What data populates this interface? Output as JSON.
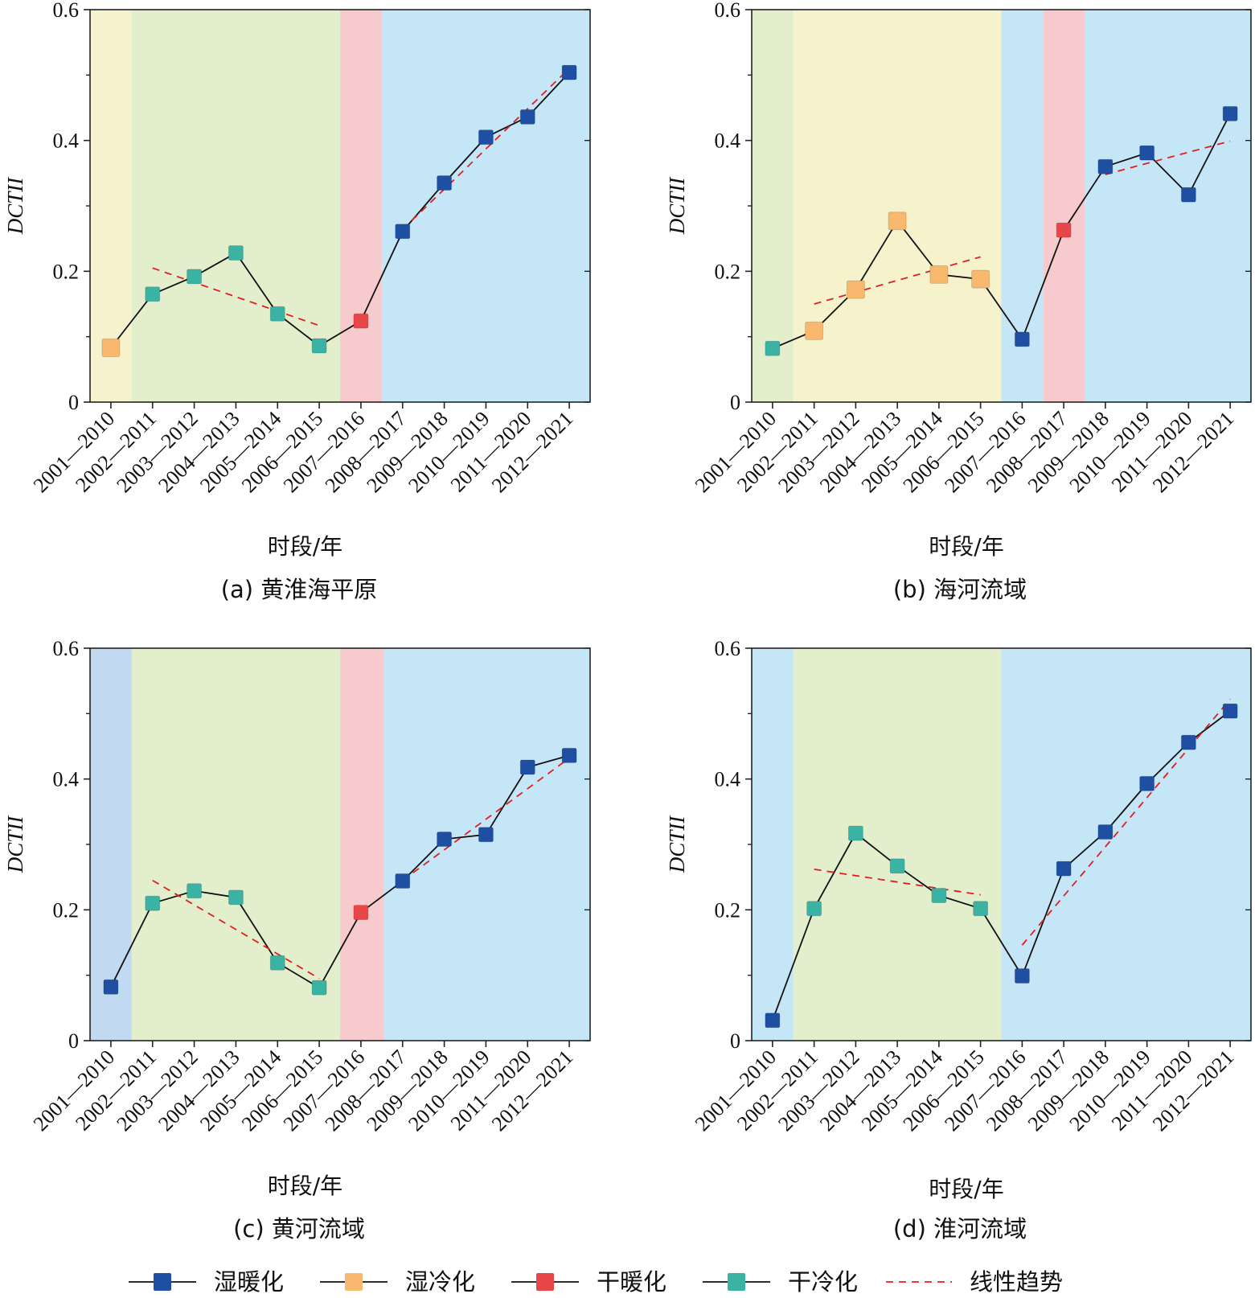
{
  "colors": {
    "wet_warm": "#1e4fa3",
    "wet_cold": "#f8b86d",
    "dry_warm": "#e8474a",
    "dry_cold": "#3bb3a4",
    "trend": "#e02020",
    "bg_blue": "#c5e6f7",
    "bg_darkblue": "#c1d9f1",
    "bg_yellow": "#f5f2cc",
    "bg_green": "#e3efcc",
    "bg_pink": "#f7cbcd"
  },
  "legend": {
    "wet_warm": "湿暖化",
    "wet_cold": "湿冷化",
    "dry_warm": "干暖化",
    "dry_cold": "干冷化",
    "trend": "线性趋势"
  },
  "chart_data": [
    {
      "type": "line",
      "caption": "(a) 黄淮海平原",
      "xlabel": "时段/年",
      "ylabel": "DCTII",
      "ylim": [
        0,
        0.6
      ],
      "yticks": [
        "0",
        "0.2",
        "0.4",
        "0.6"
      ],
      "categories": [
        "2001—2010",
        "2002—2011",
        "2003—2012",
        "2004—2013",
        "2005—2014",
        "2006—2015",
        "2007—2016",
        "2008—2017",
        "2009—2018",
        "2010—2019",
        "2011—2020",
        "2012—2021"
      ],
      "values": [
        0.083,
        0.165,
        0.192,
        0.228,
        0.135,
        0.086,
        0.124,
        0.261,
        0.335,
        0.405,
        0.436,
        0.504
      ],
      "classes": [
        "wet_cold",
        "dry_cold",
        "dry_cold",
        "dry_cold",
        "dry_cold",
        "dry_cold",
        "dry_warm",
        "wet_warm",
        "wet_warm",
        "wet_warm",
        "wet_warm",
        "wet_warm"
      ],
      "backgrounds": [
        {
          "from": 0,
          "to": 0.5,
          "color": "bg_yellow"
        },
        {
          "from": 0.5,
          "to": 5.5,
          "color": "bg_green"
        },
        {
          "from": 5.5,
          "to": 6.5,
          "color": "bg_pink"
        },
        {
          "from": 6.5,
          "to": 11.5,
          "color": "bg_blue"
        }
      ],
      "trends": [
        {
          "x": [
            1,
            5
          ],
          "y": [
            0.205,
            0.117
          ]
        },
        {
          "x": [
            7,
            11
          ],
          "y": [
            0.264,
            0.51
          ]
        }
      ]
    },
    {
      "type": "line",
      "caption": "(b) 海河流域",
      "xlabel": "时段/年",
      "ylabel": "DCTII",
      "ylim": [
        0,
        0.6
      ],
      "yticks": [
        "0",
        "0.2",
        "0.4",
        "0.6"
      ],
      "categories": [
        "2001—2010",
        "2002—2011",
        "2003—2012",
        "2004—2013",
        "2005—2014",
        "2006—2015",
        "2007—2016",
        "2008—2017",
        "2009—2018",
        "2010—2019",
        "2011—2020",
        "2012—2021"
      ],
      "values": [
        0.082,
        0.109,
        0.172,
        0.277,
        0.195,
        0.188,
        0.096,
        0.263,
        0.36,
        0.381,
        0.317,
        0.441
      ],
      "classes": [
        "dry_cold",
        "wet_cold",
        "wet_cold",
        "wet_cold",
        "wet_cold",
        "wet_cold",
        "wet_warm",
        "dry_warm",
        "wet_warm",
        "wet_warm",
        "wet_warm",
        "wet_warm"
      ],
      "backgrounds": [
        {
          "from": 0,
          "to": 0.5,
          "color": "bg_green"
        },
        {
          "from": 0.5,
          "to": 5.5,
          "color": "bg_yellow"
        },
        {
          "from": 5.5,
          "to": 6.5,
          "color": "bg_blue"
        },
        {
          "from": 6.5,
          "to": 7.5,
          "color": "bg_pink"
        },
        {
          "from": 7.5,
          "to": 11.5,
          "color": "bg_blue"
        }
      ],
      "trends": [
        {
          "x": [
            1,
            5
          ],
          "y": [
            0.15,
            0.222
          ]
        },
        {
          "x": [
            8,
            11
          ],
          "y": [
            0.348,
            0.399
          ]
        }
      ]
    },
    {
      "type": "line",
      "caption": "(c) 黄河流域",
      "xlabel": "时段/年",
      "ylabel": "DCTII",
      "ylim": [
        0,
        0.6
      ],
      "yticks": [
        "0",
        "0.2",
        "0.4",
        "0.6"
      ],
      "categories": [
        "2001—2010",
        "2002—2011",
        "2003—2012",
        "2004—2013",
        "2005—2014",
        "2006—2015",
        "2007—2016",
        "2008—2017",
        "2009—2018",
        "2010—2019",
        "2011—2020",
        "2012—2021"
      ],
      "values": [
        0.082,
        0.21,
        0.229,
        0.219,
        0.119,
        0.081,
        0.196,
        0.244,
        0.308,
        0.315,
        0.418,
        0.436
      ],
      "classes": [
        "wet_warm",
        "dry_cold",
        "dry_cold",
        "dry_cold",
        "dry_cold",
        "dry_cold",
        "dry_warm",
        "wet_warm",
        "wet_warm",
        "wet_warm",
        "wet_warm",
        "wet_warm"
      ],
      "backgrounds": [
        {
          "from": 0,
          "to": 0.5,
          "color": "bg_darkblue"
        },
        {
          "from": 0.5,
          "to": 5.5,
          "color": "bg_green"
        },
        {
          "from": 5.5,
          "to": 6.55,
          "color": "bg_pink"
        },
        {
          "from": 6.55,
          "to": 11.5,
          "color": "bg_blue"
        }
      ],
      "trends": [
        {
          "x": [
            1,
            5
          ],
          "y": [
            0.245,
            0.095
          ]
        },
        {
          "x": [
            7,
            11
          ],
          "y": [
            0.245,
            0.432
          ]
        }
      ]
    },
    {
      "type": "line",
      "caption": "(d) 淮河流域",
      "xlabel": "时段/年",
      "ylabel": "DCTII",
      "ylim": [
        0,
        0.6
      ],
      "yticks": [
        "0",
        "0.2",
        "0.4",
        "0.6"
      ],
      "categories": [
        "2001—2010",
        "2002—2011",
        "2003—2012",
        "2004—2013",
        "2005—2014",
        "2006—2015",
        "2007—2016",
        "2008—2017",
        "2009—2018",
        "2010—2019",
        "2011—2020",
        "2012—2021"
      ],
      "values": [
        0.031,
        0.202,
        0.317,
        0.267,
        0.222,
        0.202,
        0.099,
        0.263,
        0.319,
        0.393,
        0.456,
        0.504
      ],
      "classes": [
        "wet_warm",
        "dry_cold",
        "dry_cold",
        "dry_cold",
        "dry_cold",
        "dry_cold",
        "wet_warm",
        "wet_warm",
        "wet_warm",
        "wet_warm",
        "wet_warm",
        "wet_warm"
      ],
      "backgrounds": [
        {
          "from": 0,
          "to": 0.5,
          "color": "bg_blue"
        },
        {
          "from": 0.5,
          "to": 5.5,
          "color": "bg_green"
        },
        {
          "from": 5.5,
          "to": 11.5,
          "color": "bg_blue"
        }
      ],
      "trends": [
        {
          "x": [
            1,
            5
          ],
          "y": [
            0.262,
            0.223
          ]
        },
        {
          "x": [
            6,
            11
          ],
          "y": [
            0.146,
            0.522
          ]
        }
      ]
    }
  ]
}
